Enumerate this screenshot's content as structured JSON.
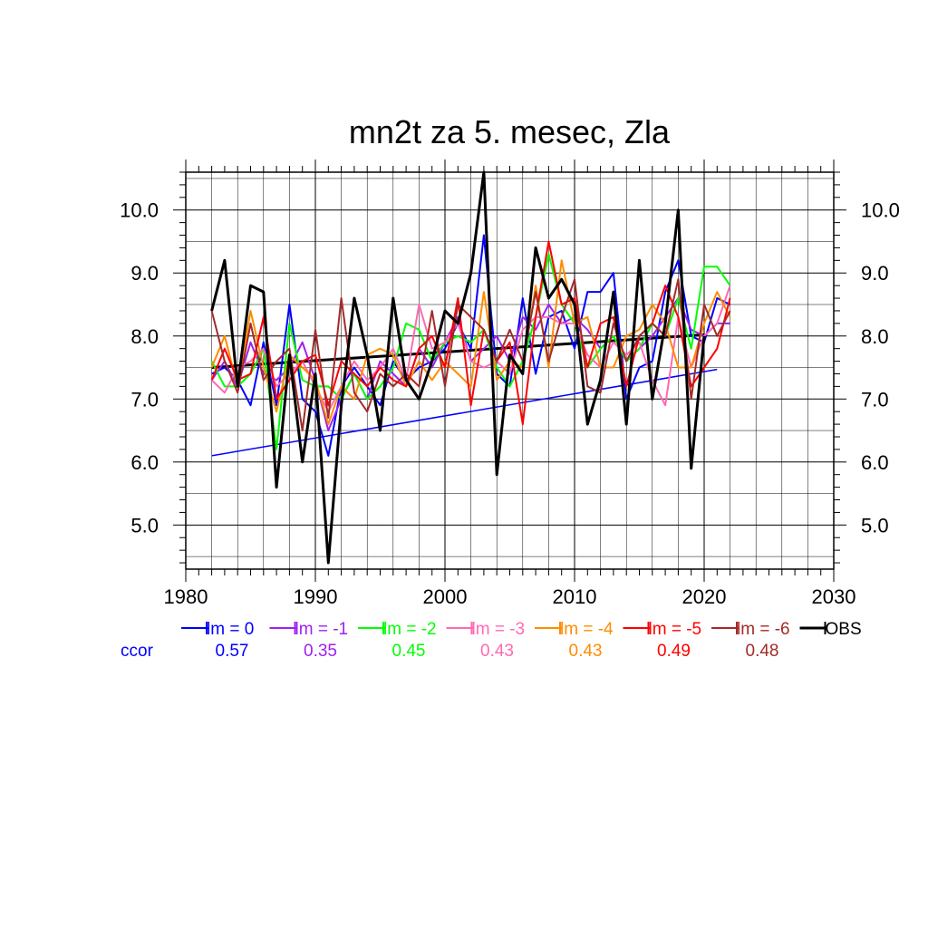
{
  "chart_data": {
    "type": "line",
    "title": "mn2t za 5. mesec, Zla",
    "xlabel": "",
    "ylabel": "",
    "xlim": [
      1980,
      2030
    ],
    "ylim": [
      4.3,
      10.6
    ],
    "x_ticks": [
      "1980",
      "1990",
      "2000",
      "2010",
      "2020",
      "2030"
    ],
    "y_ticks": [
      "5.0",
      "6.0",
      "7.0",
      "8.0",
      "9.0",
      "10.0"
    ],
    "grid": true,
    "legend_position": "bottom",
    "ccor_label": "ccor",
    "series": [
      {
        "name": "lm = 0",
        "ccor": "0.57",
        "color": "#0000ff",
        "x": [
          1982,
          1983,
          1984,
          1985,
          1986,
          1987,
          1988,
          1989,
          1990,
          1991,
          1992,
          1993,
          1994,
          1995,
          1996,
          1997,
          1998,
          1999,
          2000,
          2001,
          2002,
          2003,
          2004,
          2005,
          2006,
          2007,
          2008,
          2009,
          2010,
          2011,
          2012,
          2013,
          2014,
          2015,
          2016,
          2017,
          2018,
          2019,
          2020,
          2021,
          2022
        ],
        "values": [
          7.4,
          7.5,
          7.3,
          6.9,
          7.9,
          6.9,
          8.5,
          7.0,
          6.8,
          6.1,
          7.2,
          7.5,
          7.2,
          6.9,
          7.6,
          7.3,
          7.5,
          7.6,
          7.8,
          8.2,
          7.8,
          9.6,
          7.4,
          7.2,
          8.6,
          7.4,
          8.3,
          8.4,
          7.8,
          8.7,
          8.7,
          9.0,
          7.0,
          7.5,
          7.6,
          8.7,
          9.2,
          8.0,
          7.9,
          8.6,
          8.5
        ]
      },
      {
        "name": "lm = -1",
        "ccor": "0.35",
        "color": "#a020f0",
        "x": [
          1982,
          1983,
          1984,
          1985,
          1986,
          1987,
          1988,
          1989,
          1990,
          1991,
          1992,
          1993,
          1994,
          1995,
          1996,
          1997,
          1998,
          1999,
          2000,
          2001,
          2002,
          2003,
          2004,
          2005,
          2006,
          2007,
          2008,
          2009,
          2010,
          2011,
          2012,
          2013,
          2014,
          2015,
          2016,
          2017,
          2018,
          2019,
          2020,
          2021,
          2022
        ],
        "values": [
          7.3,
          7.6,
          7.2,
          7.9,
          7.4,
          7.3,
          7.5,
          7.9,
          7.3,
          6.5,
          7.0,
          7.4,
          7.0,
          7.6,
          7.4,
          7.2,
          7.8,
          7.5,
          7.9,
          8.3,
          7.6,
          7.8,
          8.0,
          7.6,
          8.3,
          8.1,
          8.5,
          8.2,
          8.3,
          8.1,
          7.8,
          8.0,
          7.6,
          7.8,
          8.0,
          8.3,
          8.6,
          8.1,
          8.0,
          8.2,
          8.2
        ]
      },
      {
        "name": "lm = -2",
        "ccor": "0.45",
        "color": "#00ff00",
        "x": [
          1982,
          1983,
          1984,
          1985,
          1986,
          1987,
          1988,
          1989,
          1990,
          1991,
          1992,
          1993,
          1994,
          1995,
          1996,
          1997,
          1998,
          1999,
          2000,
          2001,
          2002,
          2003,
          2004,
          2005,
          2006,
          2007,
          2008,
          2009,
          2010,
          2011,
          2012,
          2013,
          2014,
          2015,
          2016,
          2017,
          2018,
          2019,
          2020,
          2021,
          2022
        ],
        "values": [
          7.6,
          7.2,
          7.2,
          7.4,
          7.8,
          6.2,
          8.2,
          7.3,
          7.2,
          7.2,
          7.0,
          7.4,
          7.0,
          7.2,
          7.5,
          8.2,
          8.1,
          7.6,
          7.9,
          8.0,
          7.9,
          8.1,
          7.5,
          7.2,
          7.6,
          8.3,
          9.3,
          8.5,
          8.2,
          7.5,
          7.8,
          8.0,
          7.6,
          7.8,
          8.2,
          8.0,
          8.6,
          7.8,
          9.1,
          9.1,
          8.8
        ]
      },
      {
        "name": "lm = -3",
        "ccor": "0.43",
        "color": "#ff69b4",
        "x": [
          1982,
          1983,
          1984,
          1985,
          1986,
          1987,
          1988,
          1989,
          1990,
          1991,
          1992,
          1993,
          1994,
          1995,
          1996,
          1997,
          1998,
          1999,
          2000,
          2001,
          2002,
          2003,
          2004,
          2005,
          2006,
          2007,
          2008,
          2009,
          2010,
          2011,
          2012,
          2013,
          2014,
          2015,
          2016,
          2017,
          2018,
          2019,
          2020,
          2021,
          2022
        ],
        "values": [
          7.3,
          7.1,
          7.5,
          7.6,
          7.8,
          7.2,
          7.4,
          7.6,
          7.2,
          6.8,
          7.2,
          7.6,
          7.3,
          7.5,
          7.8,
          7.3,
          8.5,
          7.8,
          7.9,
          8.2,
          7.6,
          7.5,
          7.6,
          7.4,
          8.1,
          8.3,
          8.3,
          8.2,
          8.2,
          7.7,
          7.5,
          7.9,
          7.7,
          7.9,
          7.3,
          6.9,
          8.3,
          7.5,
          8.0,
          8.2,
          8.8
        ]
      },
      {
        "name": "lm = -4",
        "ccor": "0.43",
        "color": "#ff8c00",
        "x": [
          1982,
          1983,
          1984,
          1985,
          1986,
          1987,
          1988,
          1989,
          1990,
          1991,
          1992,
          1993,
          1994,
          1995,
          1996,
          1997,
          1998,
          1999,
          2000,
          2001,
          2002,
          2003,
          2004,
          2005,
          2006,
          2007,
          2008,
          2009,
          2010,
          2011,
          2012,
          2013,
          2014,
          2015,
          2016,
          2017,
          2018,
          2019,
          2020,
          2021,
          2022
        ],
        "values": [
          7.5,
          8.0,
          7.2,
          8.4,
          7.5,
          6.8,
          7.7,
          7.5,
          7.3,
          6.6,
          7.2,
          7.0,
          7.7,
          7.8,
          7.7,
          7.2,
          7.6,
          7.3,
          7.6,
          7.4,
          7.2,
          8.7,
          7.3,
          7.6,
          7.5,
          8.8,
          7.5,
          9.2,
          8.2,
          8.3,
          7.5,
          7.5,
          8.0,
          8.1,
          8.5,
          8.2,
          7.5,
          7.5,
          8.2,
          8.7,
          8.3
        ]
      },
      {
        "name": "lm = -5",
        "ccor": "0.49",
        "color": "#ff0000",
        "x": [
          1982,
          1983,
          1984,
          1985,
          1986,
          1987,
          1988,
          1989,
          1990,
          1991,
          1992,
          1993,
          1994,
          1995,
          1996,
          1997,
          1998,
          1999,
          2000,
          2001,
          2002,
          2003,
          2004,
          2005,
          2006,
          2007,
          2008,
          2009,
          2010,
          2011,
          2012,
          2013,
          2014,
          2015,
          2016,
          2017,
          2018,
          2019,
          2020,
          2021,
          2022
        ],
        "values": [
          7.3,
          7.8,
          7.3,
          7.4,
          8.3,
          7.0,
          7.3,
          7.6,
          7.7,
          6.9,
          7.6,
          7.4,
          7.2,
          7.5,
          7.3,
          7.2,
          7.8,
          8.0,
          7.5,
          8.6,
          6.9,
          8.1,
          7.6,
          7.9,
          6.6,
          8.3,
          9.5,
          8.5,
          8.6,
          7.5,
          8.2,
          8.3,
          7.2,
          8.0,
          8.2,
          8.8,
          8.3,
          7.2,
          7.5,
          7.8,
          8.6
        ]
      },
      {
        "name": "lm = -6",
        "ccor": "0.48",
        "color": "#a52a2a",
        "x": [
          1982,
          1983,
          1984,
          1985,
          1986,
          1987,
          1988,
          1989,
          1990,
          1991,
          1992,
          1993,
          1994,
          1995,
          1996,
          1997,
          1998,
          1999,
          2000,
          2001,
          2002,
          2003,
          2004,
          2005,
          2006,
          2007,
          2008,
          2009,
          2010,
          2011,
          2012,
          2013,
          2014,
          2015,
          2016,
          2017,
          2018,
          2019,
          2020,
          2021,
          2022
        ],
        "values": [
          8.4,
          7.6,
          7.1,
          8.2,
          7.3,
          7.6,
          7.8,
          6.5,
          8.1,
          6.7,
          8.6,
          7.1,
          6.8,
          7.4,
          7.2,
          7.4,
          7.2,
          8.4,
          7.2,
          8.5,
          8.3,
          8.1,
          7.6,
          8.1,
          7.6,
          8.7,
          7.6,
          8.3,
          8.9,
          7.2,
          7.1,
          8.2,
          7.6,
          8.0,
          8.2,
          8.0,
          8.9,
          7.0,
          8.5,
          8.0,
          8.4
        ]
      },
      {
        "name": "OBS",
        "ccor": "",
        "color": "#000000",
        "x": [
          1982,
          1983,
          1984,
          1985,
          1986,
          1987,
          1988,
          1989,
          1990,
          1991,
          1992,
          1993,
          1994,
          1995,
          1996,
          1997,
          1998,
          1999,
          2000,
          2001,
          2002,
          2003,
          2004,
          2005,
          2006,
          2007,
          2008,
          2009,
          2010,
          2011,
          2012,
          2013,
          2014,
          2015,
          2016,
          2017,
          2018,
          2019,
          2020
        ],
        "values": [
          8.4,
          9.2,
          7.2,
          8.8,
          8.7,
          5.6,
          7.7,
          6.0,
          7.4,
          4.4,
          6.9,
          8.6,
          7.7,
          6.5,
          8.6,
          7.3,
          7.0,
          7.6,
          8.4,
          8.2,
          9.0,
          10.6,
          5.8,
          7.7,
          7.4,
          9.4,
          8.6,
          8.9,
          8.5,
          6.6,
          7.3,
          8.7,
          6.6,
          9.2,
          7.0,
          8.2,
          10.0,
          5.9,
          8.0
        ]
      }
    ],
    "trend_lines": [
      {
        "series": "lm = 0",
        "x": [
          1982,
          2021
        ],
        "values": [
          6.1,
          7.47
        ],
        "color": "#0000ff"
      },
      {
        "series": "OBS",
        "x": [
          1982,
          2020
        ],
        "values": [
          7.5,
          8.02
        ],
        "color": "#000000"
      }
    ]
  }
}
